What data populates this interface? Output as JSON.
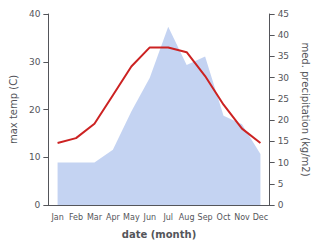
{
  "chart_data": {
    "type": "line",
    "xlabel": "date (month)",
    "ylabel": "max temp (C)",
    "y2label": "med. precipitation (kg/m2)",
    "categories": [
      "Jan",
      "Feb",
      "Mar",
      "Apr",
      "May",
      "Jun",
      "Jul",
      "Aug",
      "Sep",
      "Oct",
      "Nov",
      "Dec"
    ],
    "ylim": [
      0,
      40
    ],
    "yticks": [
      0,
      10,
      20,
      30,
      40
    ],
    "y2lim": [
      0,
      45
    ],
    "y2ticks": [
      0,
      5,
      10,
      15,
      20,
      25,
      30,
      35,
      40,
      45
    ],
    "grid": false,
    "series": [
      {
        "type": "area",
        "color": "#b0c4ee",
        "axis": "y2",
        "values": [
          10,
          10,
          10,
          13,
          22,
          30,
          42,
          33,
          35,
          21,
          19,
          12
        ]
      },
      {
        "type": "line",
        "color": "#cc2222",
        "values": [
          13,
          14,
          17,
          23,
          29,
          33,
          33,
          32,
          27,
          21,
          16,
          13
        ]
      }
    ]
  }
}
